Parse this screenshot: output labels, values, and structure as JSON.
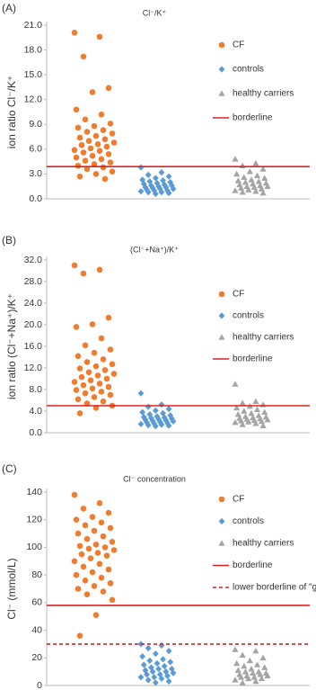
{
  "chart_data": [
    {
      "type": "strip",
      "panel_label": "(A)",
      "title": "Cl⁻/K⁺",
      "y_label": "ion ratio Cl⁻/K⁺",
      "ylim": [
        0,
        21
      ],
      "yticks": [
        {
          "value": 0,
          "label": "0.0"
        },
        {
          "value": 3,
          "label": "3.0"
        },
        {
          "value": 6,
          "label": "6.0"
        },
        {
          "value": 9,
          "label": "9.0"
        },
        {
          "value": 12,
          "label": "12.0"
        },
        {
          "value": 15,
          "label": "15.0"
        },
        {
          "value": 18,
          "label": "18.0"
        },
        {
          "value": 21,
          "label": "21.0"
        }
      ],
      "series": [
        {
          "name": "CF",
          "color": "#ed7d31",
          "marker": "circle",
          "values": [
            20.1,
            19.6,
            17.2,
            13.4,
            12.9,
            10.8,
            10.2,
            9.6,
            9.1,
            8.8,
            8.6,
            8.3,
            8.1,
            7.9,
            7.6,
            7.4,
            7.2,
            7.0,
            6.8,
            6.6,
            6.5,
            6.3,
            6.1,
            5.9,
            5.8,
            5.6,
            5.4,
            5.2,
            5.0,
            4.8,
            4.6,
            4.4,
            4.2,
            4.0,
            3.8,
            3.6,
            3.3,
            3.0,
            2.7,
            2.4
          ]
        },
        {
          "name": "controls",
          "color": "#5b9bd5",
          "marker": "diamond",
          "values": [
            3.8,
            3.2,
            2.9,
            2.7,
            2.5,
            2.3,
            2.2,
            2.1,
            2.0,
            1.9,
            1.8,
            1.7,
            1.6,
            1.6,
            1.5,
            1.4,
            1.4,
            1.3,
            1.2,
            1.2,
            1.1,
            1.0,
            1.0,
            0.9,
            0.8,
            0.8,
            0.7,
            0.6
          ]
        },
        {
          "name": "healthy carriers",
          "color": "#a5a5a5",
          "marker": "triangle",
          "values": [
            4.8,
            4.3,
            4.0,
            3.6,
            3.3,
            3.0,
            2.8,
            2.6,
            2.5,
            2.3,
            2.2,
            2.1,
            2.0,
            1.9,
            1.8,
            1.7,
            1.6,
            1.5,
            1.5,
            1.4,
            1.3,
            1.2,
            1.1,
            1.0,
            0.9,
            0.8,
            0.7
          ]
        }
      ],
      "borderlines": [
        {
          "name": "borderline",
          "value": 3.9,
          "color": "#e02020",
          "dashed": false
        }
      ]
    },
    {
      "type": "strip",
      "panel_label": "(B)",
      "title": "(Cl⁻+Na⁺)/K⁺",
      "y_label": "ion ratio (Cl⁻+Na⁺)/K⁺",
      "ylim": [
        0,
        32
      ],
      "yticks": [
        {
          "value": 0,
          "label": "0.0"
        },
        {
          "value": 4,
          "label": "4.0"
        },
        {
          "value": 8,
          "label": "8.0"
        },
        {
          "value": 12,
          "label": "12.0"
        },
        {
          "value": 16,
          "label": "16.0"
        },
        {
          "value": 20,
          "label": "20.0"
        },
        {
          "value": 24,
          "label": "24.0"
        },
        {
          "value": 28,
          "label": "28.0"
        },
        {
          "value": 32,
          "label": "32.0"
        }
      ],
      "series": [
        {
          "name": "CF",
          "color": "#ed7d31",
          "marker": "circle",
          "values": [
            31.0,
            30.2,
            29.5,
            21.3,
            20.1,
            19.6,
            17.5,
            16.2,
            15.4,
            14.8,
            14.2,
            13.6,
            13.1,
            12.7,
            12.3,
            11.9,
            11.6,
            11.2,
            10.9,
            10.6,
            10.3,
            10.0,
            9.7,
            9.4,
            9.1,
            8.8,
            8.5,
            8.2,
            7.9,
            7.6,
            7.3,
            7.0,
            6.6,
            6.2,
            5.8,
            5.4,
            5.0,
            4.6,
            3.6
          ]
        },
        {
          "name": "controls",
          "color": "#5b9bd5",
          "marker": "diamond",
          "values": [
            7.3,
            5.2,
            4.8,
            4.4,
            4.1,
            3.8,
            3.6,
            3.4,
            3.2,
            3.0,
            2.9,
            2.8,
            2.7,
            2.6,
            2.5,
            2.4,
            2.3,
            2.2,
            2.1,
            2.0,
            1.9,
            1.8,
            1.7,
            1.6,
            1.5,
            1.4,
            1.3,
            1.2
          ]
        },
        {
          "name": "healthy carriers",
          "color": "#a5a5a5",
          "marker": "triangle",
          "values": [
            9.0,
            5.8,
            5.5,
            5.2,
            4.9,
            4.6,
            4.3,
            4.0,
            3.8,
            3.6,
            3.4,
            3.2,
            3.0,
            2.9,
            2.8,
            2.7,
            2.6,
            2.5,
            2.4,
            2.3,
            2.2,
            2.1,
            2.0,
            1.9,
            1.7,
            1.5,
            1.3
          ]
        }
      ],
      "borderlines": [
        {
          "name": "borderline",
          "value": 5.0,
          "color": "#e02020",
          "dashed": false
        }
      ]
    },
    {
      "type": "strip",
      "panel_label": "(C)",
      "title": "Cl⁻ concentration",
      "y_label": "Cl⁻ (mmol/L)",
      "ylim": [
        0,
        140
      ],
      "yticks": [
        0,
        20,
        40,
        60,
        80,
        100,
        120,
        140
      ],
      "series": [
        {
          "name": "CF",
          "color": "#ed7d31",
          "marker": "circle",
          "values": [
            138,
            132,
            128,
            125,
            122,
            120,
            118,
            116,
            114,
            112,
            110,
            108,
            106,
            104,
            102,
            101,
            100,
            99,
            98,
            96,
            95,
            94,
            92,
            90,
            88,
            86,
            84,
            82,
            80,
            78,
            76,
            74,
            72,
            70,
            68,
            66,
            62,
            51,
            36
          ]
        },
        {
          "name": "controls",
          "color": "#5b9bd5",
          "marker": "diamond",
          "values": [
            30,
            29,
            27,
            25,
            23,
            21,
            19,
            18,
            17,
            16,
            15,
            14,
            13,
            12,
            12,
            11,
            10,
            10,
            9,
            8,
            8,
            7,
            6,
            6,
            5,
            4,
            3,
            2
          ]
        },
        {
          "name": "healthy carriers",
          "color": "#a5a5a5",
          "marker": "triangle",
          "values": [
            26,
            25,
            22,
            20,
            18,
            16,
            15,
            14,
            13,
            12,
            11,
            10,
            10,
            9,
            9,
            8,
            8,
            7,
            7,
            6,
            6,
            5,
            5,
            4,
            3,
            2
          ]
        }
      ],
      "borderlines": [
        {
          "name": "borderline",
          "value": 58,
          "color": "#e02020",
          "dashed": false
        },
        {
          "name": "lower borderline of \"gray zone\"",
          "value": 30,
          "color": "#e02020",
          "dashed": true
        }
      ]
    }
  ]
}
